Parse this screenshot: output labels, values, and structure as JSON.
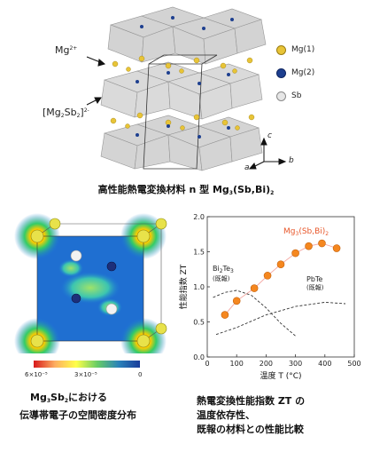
{
  "structure": {
    "label_mg": "Mg",
    "label_mg_charge": "2+",
    "label_layer_open": "[Mg",
    "label_layer_sub1": "2",
    "label_layer_mid": "Sb",
    "label_layer_sub2": "2",
    "label_layer_close": "]",
    "label_layer_charge": "2-",
    "legend": [
      {
        "label": "Mg(1)",
        "color": "#e8c437"
      },
      {
        "label": "Mg(2)",
        "color": "#1d3f8f"
      },
      {
        "label": "Sb",
        "color": "#d9d9d9"
      }
    ],
    "axes": {
      "a": "a",
      "b": "b",
      "c": "c"
    },
    "caption": {
      "prefix": "高性能熱電変換材料 n 型 Mg",
      "sub1": "3",
      "mid": "(Sb,Bi)",
      "sub2": "2"
    }
  },
  "density": {
    "colorbar_ticks": [
      "6×10⁻⁵",
      "3×10⁻⁵",
      "0"
    ],
    "caption_line1_prefix": "Mg",
    "caption_line1_sub1": "3",
    "caption_line1_mid": "Sb",
    "caption_line1_sub2": "2",
    "caption_line1_suffix": "における",
    "caption_line2": "伝導帯電子の空間密度分布"
  },
  "plot": {
    "caption_lines": [
      "熱電変換性能指数 ZT の",
      "温度依存性、",
      "既報の材料との性能比較"
    ],
    "series_label": {
      "prefix": "Mg",
      "sub1": "3",
      "mid": "(Sb,Bi)",
      "sub2": "2"
    },
    "bi2te3_label": {
      "prefix": "Bi",
      "sub1": "2",
      "mid": "Te",
      "sub2": "3"
    },
    "bi2te3_note": "(既報)",
    "pbte_label": "PbTe",
    "pbte_note": "(既報)",
    "accent_color": "#f5871f"
  },
  "chart_data": {
    "type": "scatter",
    "xlabel": "温度 T (°C)",
    "ylabel": "性能指数 ZT",
    "xlim": [
      0,
      500
    ],
    "ylim": [
      0,
      2.0
    ],
    "xticks": [
      "0",
      "100",
      "200",
      "300",
      "400",
      "500"
    ],
    "yticks": [
      "0.0",
      "0.5",
      "1.0",
      "1.5",
      "2.0"
    ],
    "grid": false,
    "series": [
      {
        "name": "Mg3(Sb,Bi)2",
        "style": "points+line",
        "color": "#f5871f",
        "x": [
          60,
          100,
          160,
          205,
          250,
          300,
          345,
          390,
          440
        ],
        "y": [
          0.6,
          0.8,
          0.98,
          1.16,
          1.32,
          1.48,
          1.58,
          1.62,
          1.55
        ]
      },
      {
        "name": "Bi2Te3",
        "style": "dashed",
        "x": [
          20,
          60,
          100,
          150,
          200,
          250,
          300
        ],
        "y": [
          0.85,
          0.92,
          0.95,
          0.88,
          0.7,
          0.48,
          0.3
        ]
      },
      {
        "name": "PbTe",
        "style": "dashed",
        "x": [
          30,
          100,
          200,
          300,
          400,
          470
        ],
        "y": [
          0.32,
          0.42,
          0.6,
          0.72,
          0.78,
          0.76
        ]
      }
    ]
  }
}
